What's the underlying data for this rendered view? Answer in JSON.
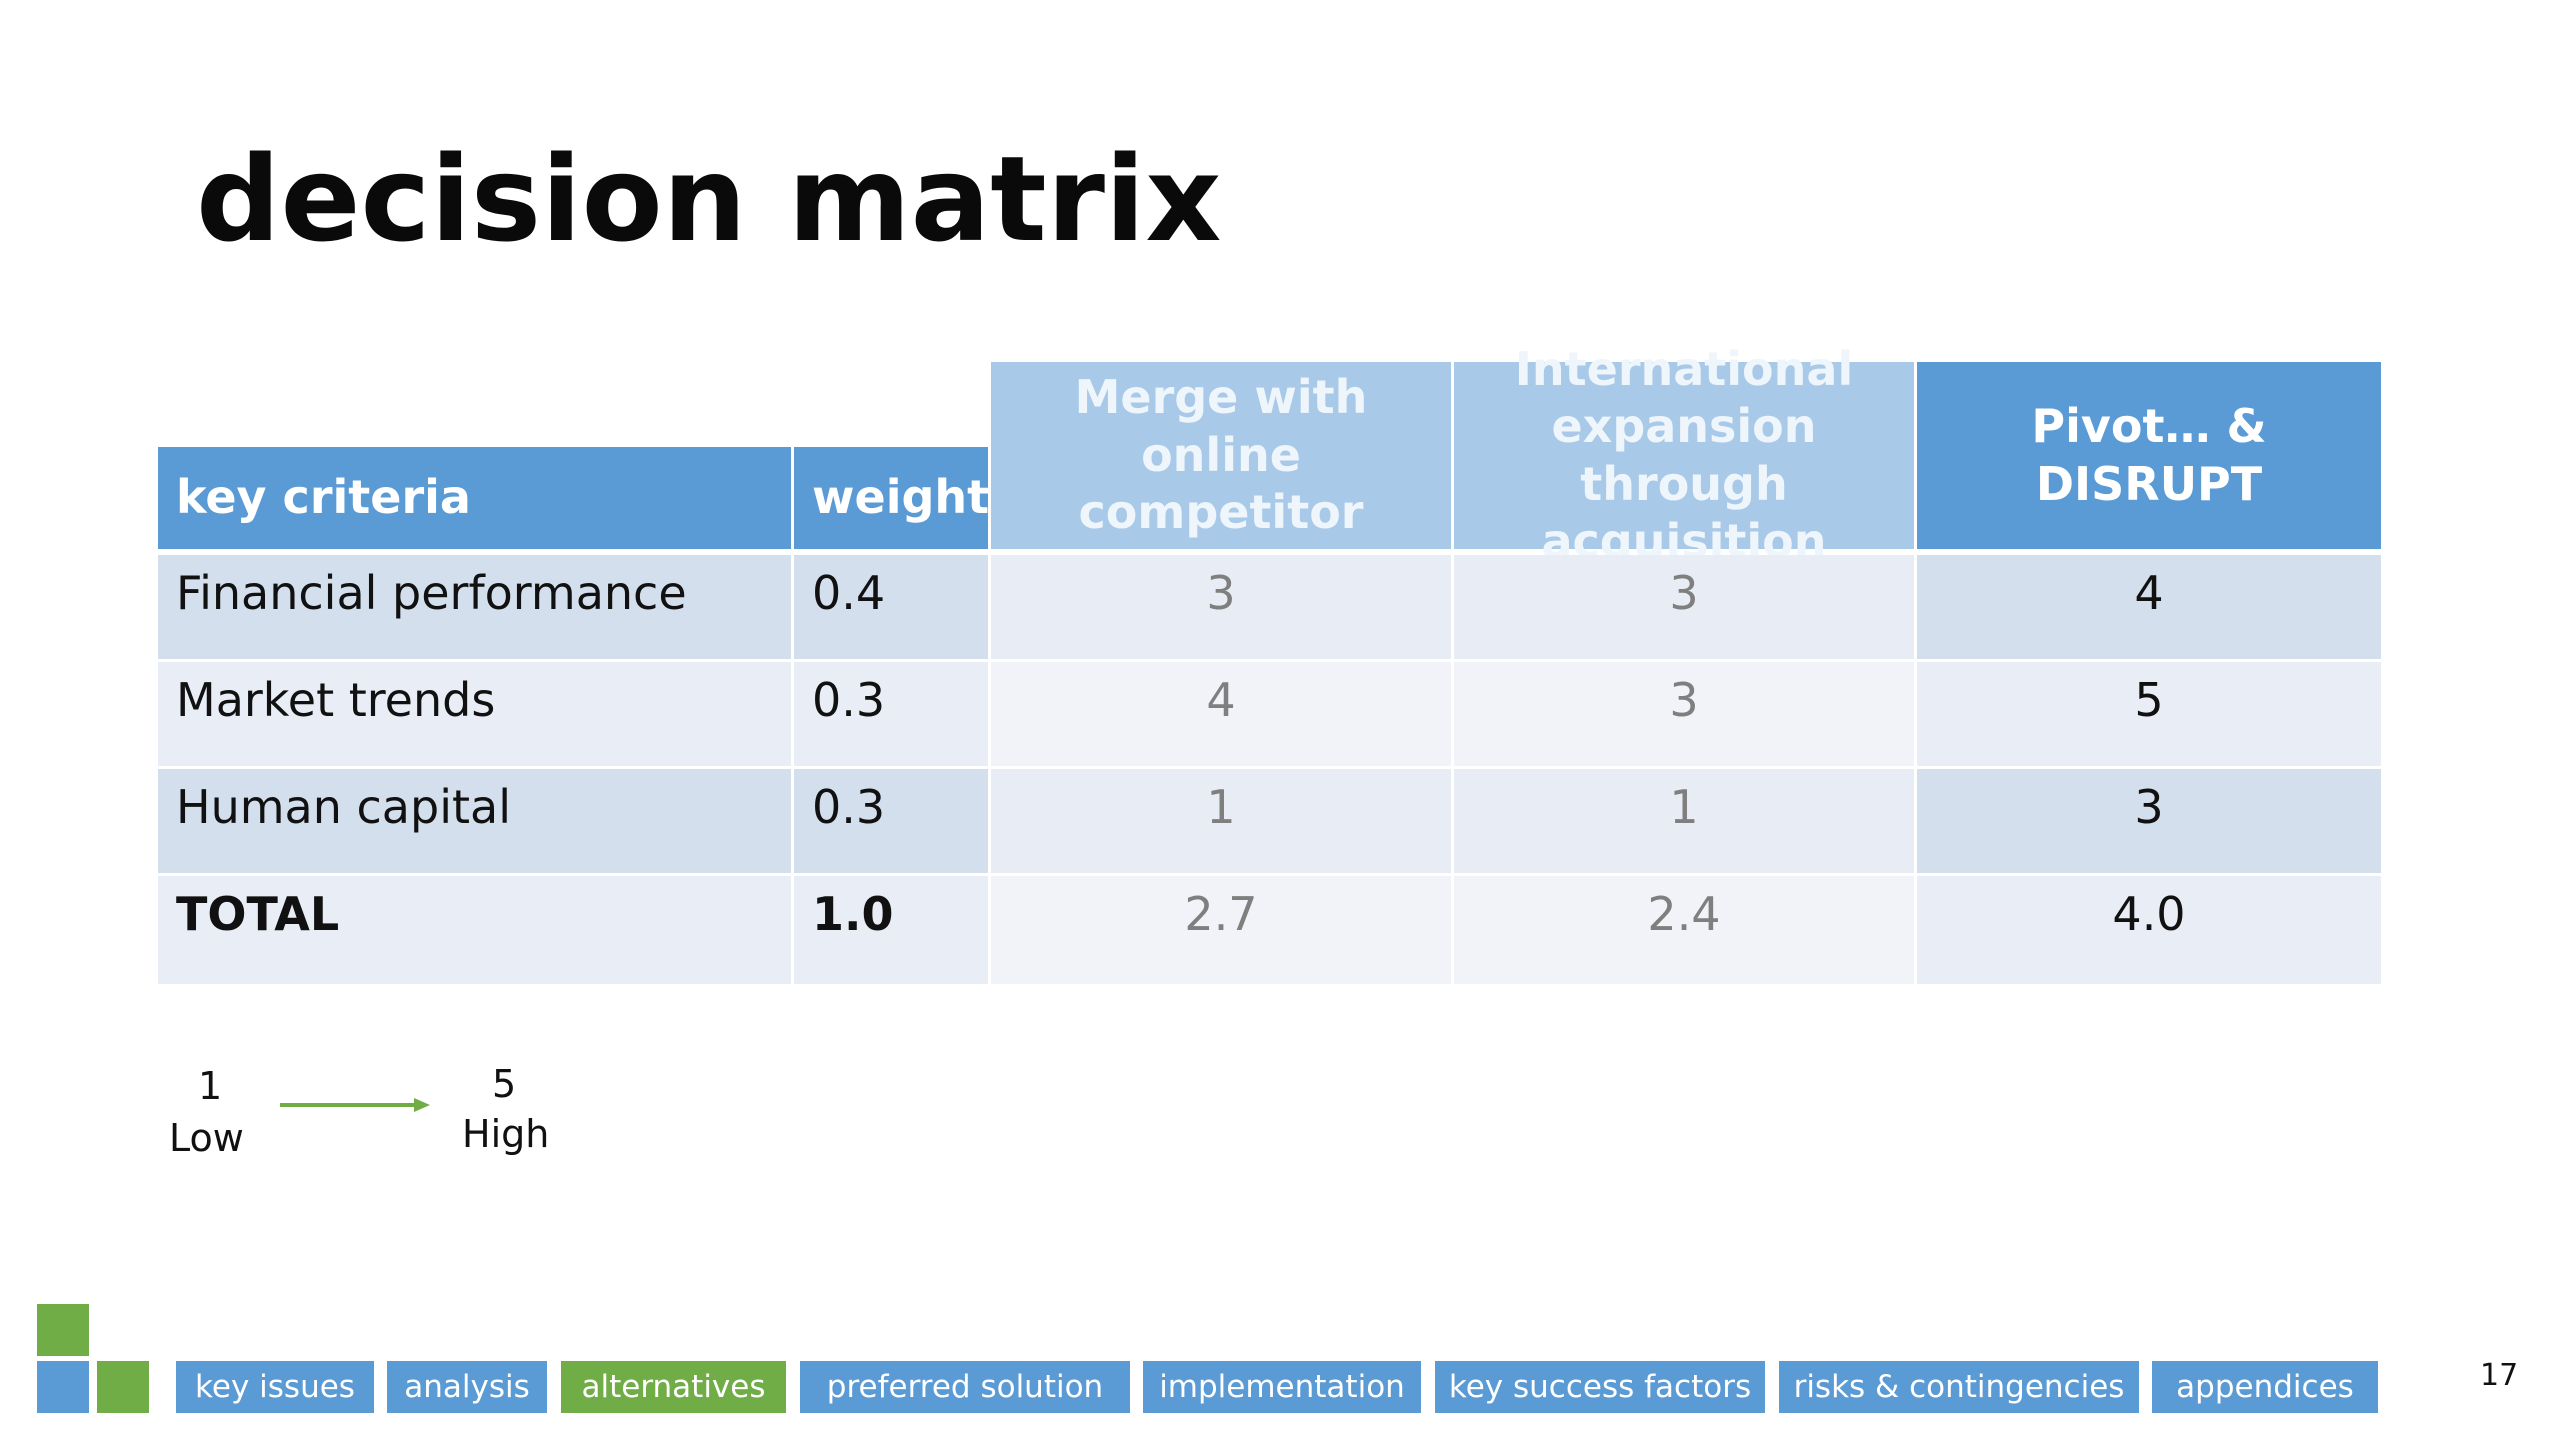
{
  "slide": {
    "title": "decision matrix",
    "page_number": "17"
  },
  "table": {
    "headers": [
      "key criteria",
      "weight",
      "Merge with online competitor",
      "International expansion through acquisition",
      "Pivot… & DISRUPT"
    ],
    "rows": [
      {
        "criterion": "Financial performance",
        "weight": "0.4",
        "merge": "3",
        "international": "3",
        "pivot": "4"
      },
      {
        "criterion": "Market trends",
        "weight": "0.3",
        "merge": "4",
        "international": "3",
        "pivot": "5"
      },
      {
        "criterion": "Human capital",
        "weight": "0.3",
        "merge": "1",
        "international": "1",
        "pivot": "3"
      },
      {
        "criterion": "TOTAL",
        "weight": "1.0",
        "merge": "2.7",
        "international": "2.4",
        "pivot": "4.0"
      }
    ]
  },
  "legend": {
    "low_value": "1",
    "low_label": "Low",
    "high_value": "5",
    "high_label": "High"
  },
  "nav": {
    "items": [
      "key issues",
      "analysis",
      "alternatives",
      "preferred solution",
      "implementation",
      "key success factors",
      "risks & contingencies",
      "appendices"
    ],
    "active": "alternatives"
  },
  "colors": {
    "header_blue": "#5b9bd5",
    "header_light": "#a9c9e8",
    "nav_green": "#70ad47",
    "row_dark": "#d4dfee",
    "row_light": "#e9edf6"
  }
}
